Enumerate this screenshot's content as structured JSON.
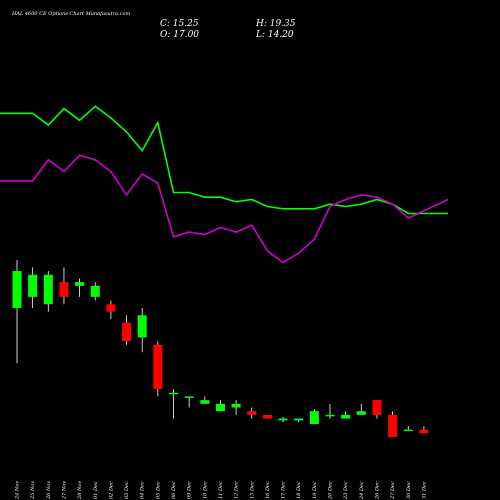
{
  "chart_data": {
    "type": "candlestick",
    "title": "HAL 4600 CE Options Chart Munafasutra.com",
    "ohlc_readout": {
      "close": "C: 15.25",
      "high": "H: 19.35",
      "open": "O: 17.00",
      "low": "L: 14.20"
    },
    "categories": [
      "24 Nov",
      "25 Nov",
      "26 Nov",
      "27 Nov",
      "28 Nov",
      "01 Dec",
      "02 Dec",
      "03 Dec",
      "04 Dec",
      "05 Dec",
      "06 Dec",
      "09 Dec",
      "10 Dec",
      "11 Dec",
      "12 Dec",
      "13 Dec",
      "16 Dec",
      "17 Dec",
      "18 Dec",
      "19 Dec",
      "20 Dec",
      "23 Dec",
      "24 Dec",
      "26 Dec",
      "27 Dec",
      "30 Dec",
      "31 Dec"
    ],
    "candles": [
      {
        "open": 255,
        "close": 265,
        "high": 268,
        "low": 240
      },
      {
        "open": 258,
        "close": 264,
        "high": 266,
        "low": 255
      },
      {
        "open": 256,
        "close": 264,
        "high": 265,
        "low": 254
      },
      {
        "open": 262,
        "close": 258,
        "high": 266,
        "low": 256
      },
      {
        "open": 261,
        "close": 262,
        "high": 263,
        "low": 258
      },
      {
        "open": 258,
        "close": 261,
        "high": 262,
        "low": 257
      },
      {
        "open": 256,
        "close": 254,
        "high": 257,
        "low": 252
      },
      {
        "open": 251,
        "close": 246,
        "high": 253,
        "low": 245
      },
      {
        "open": 247,
        "close": 253,
        "high": 255,
        "low": 243
      },
      {
        "open": 245,
        "close": 233,
        "high": 246,
        "low": 231
      },
      {
        "open": 232,
        "close": 232,
        "high": 233,
        "low": 225
      },
      {
        "open": 231,
        "close": 231,
        "high": 231,
        "low": 228
      },
      {
        "open": 229,
        "close": 230,
        "high": 231,
        "low": 229
      },
      {
        "open": 227,
        "close": 229,
        "high": 230,
        "low": 227
      },
      {
        "open": 228,
        "close": 229,
        "high": 230,
        "low": 226
      },
      {
        "open": 227,
        "close": 226,
        "high": 228,
        "low": 225
      },
      {
        "open": 226,
        "close": 225,
        "high": 226,
        "low": 225
      },
      {
        "open": 224.5,
        "close": 225,
        "high": 225.5,
        "low": 224
      },
      {
        "open": 224.5,
        "close": 225,
        "high": 225,
        "low": 224
      },
      {
        "open": 223.5,
        "close": 227,
        "high": 227.5,
        "low": 223.5
      },
      {
        "open": 226,
        "close": 226,
        "high": 229,
        "low": 225
      },
      {
        "open": 225,
        "close": 226,
        "high": 227,
        "low": 225
      },
      {
        "open": 226,
        "close": 227,
        "high": 229,
        "low": 226
      },
      {
        "open": 230,
        "close": 226,
        "high": 230,
        "low": 225
      },
      {
        "open": 226,
        "close": 220,
        "high": 227,
        "low": 220
      },
      {
        "open": 222,
        "close": 222,
        "high": 223,
        "low": 222
      },
      {
        "open": 222,
        "close": 221,
        "high": 223,
        "low": 221
      }
    ],
    "series": [
      {
        "color": "#00ff00",
        "values": [
          90,
          90,
          85,
          92,
          87,
          93,
          88,
          82,
          74,
          86,
          56,
          56,
          54,
          54,
          52,
          53,
          50,
          49,
          49,
          49,
          51,
          50,
          51,
          53,
          51,
          47,
          47
        ]
      },
      {
        "color": "#cc00cc",
        "values": [
          61,
          61,
          70,
          65,
          72,
          70,
          65,
          55,
          64,
          60,
          37,
          39,
          38,
          41,
          39,
          42,
          31,
          26,
          30,
          36,
          50,
          53,
          55,
          54,
          51,
          45,
          53
        ]
      }
    ],
    "colors": {
      "background": "#000000",
      "up": "#00ff00",
      "down": "#ff0000",
      "text": "#ffffff"
    }
  }
}
